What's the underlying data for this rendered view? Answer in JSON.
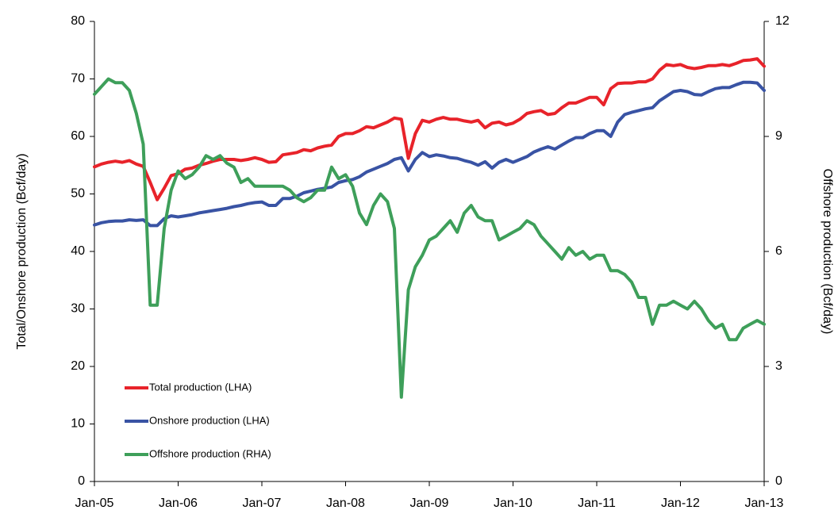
{
  "chart_data": {
    "type": "line",
    "y_label": "Total/Onshore production (Bcf/day)",
    "y2_label": "Offshore production (Bcf/day)",
    "categories": [
      "Jan-05",
      null,
      null,
      null,
      null,
      null,
      null,
      null,
      null,
      null,
      null,
      null,
      "Jan-06",
      null,
      null,
      null,
      null,
      null,
      null,
      null,
      null,
      null,
      null,
      null,
      "Jan-07",
      null,
      null,
      null,
      null,
      null,
      null,
      null,
      null,
      null,
      null,
      null,
      "Jan-08",
      null,
      null,
      null,
      null,
      null,
      null,
      null,
      null,
      null,
      null,
      null,
      "Jan-09",
      null,
      null,
      null,
      null,
      null,
      null,
      null,
      null,
      null,
      null,
      null,
      "Jan-10",
      null,
      null,
      null,
      null,
      null,
      null,
      null,
      null,
      null,
      null,
      null,
      "Jan-11",
      null,
      null,
      null,
      null,
      null,
      null,
      null,
      null,
      null,
      null,
      null,
      "Jan-12",
      null,
      null,
      null,
      null,
      null,
      null,
      null,
      null,
      null,
      null,
      null,
      "Jan-13"
    ],
    "series": [
      {
        "name": "Total production (LHA)",
        "color": "#e8232a",
        "values": [
          54.7,
          55.2,
          55.5,
          55.7,
          55.5,
          55.8,
          55.2,
          54.8,
          52,
          49,
          51,
          53.2,
          53.5,
          54.3,
          54.5,
          55,
          55.3,
          55.7,
          56,
          56,
          56,
          55.8,
          56,
          56.3,
          56,
          55.5,
          55.6,
          56.8,
          57,
          57.2,
          57.7,
          57.5,
          58,
          58.3,
          58.5,
          60,
          60.5,
          60.5,
          61,
          61.7,
          61.5,
          62,
          62.5,
          63.2,
          63,
          56.2,
          60.5,
          62.8,
          62.5,
          63,
          63.3,
          63,
          63,
          62.7,
          62.5,
          62.8,
          61.5,
          62.3,
          62.5,
          62,
          62.3,
          63,
          64,
          64.3,
          64.5,
          63.8,
          64,
          65,
          65.8,
          65.8,
          66.3,
          66.8,
          66.8,
          65.5,
          68.3,
          69.2,
          69.3,
          69.3,
          69.5,
          69.5,
          70,
          71.5,
          72.5,
          72.3,
          72.5,
          72,
          71.8,
          72,
          72.3,
          72.3,
          72.5,
          72.3,
          72.7,
          73.2,
          73.3,
          73.5,
          72.2
        ]
      },
      {
        "name": "Onshore production (LHA)",
        "color": "#3953a4",
        "values": [
          44.6,
          45,
          45.2,
          45.3,
          45.3,
          45.5,
          45.4,
          45.5,
          44.5,
          44.5,
          45.7,
          46.2,
          46,
          46.2,
          46.4,
          46.7,
          46.9,
          47.1,
          47.3,
          47.5,
          47.8,
          48,
          48.3,
          48.5,
          48.6,
          48,
          48,
          49.2,
          49.2,
          49.6,
          50.2,
          50.5,
          50.8,
          51,
          51.2,
          52,
          52.3,
          52.5,
          53,
          53.8,
          54.3,
          54.8,
          55.3,
          56,
          56.3,
          54,
          56,
          57.2,
          56.5,
          56.8,
          56.6,
          56.3,
          56.2,
          55.8,
          55.5,
          55,
          55.6,
          54.5,
          55.5,
          56,
          55.5,
          56,
          56.5,
          57.3,
          57.8,
          58.2,
          57.8,
          58.5,
          59.2,
          59.8,
          59.8,
          60.5,
          61,
          61,
          60,
          62.5,
          63.8,
          64.2,
          64.5,
          64.8,
          65,
          66.2,
          67,
          67.8,
          68,
          67.8,
          67.3,
          67.2,
          67.8,
          68.3,
          68.5,
          68.5,
          69,
          69.4,
          69.4,
          69.3,
          68
        ]
      },
      {
        "name": "Offshore production (RHA)",
        "color": "#3e9f5a",
        "axis": "y2",
        "values": [
          10.1,
          10.3,
          10.5,
          10.4,
          10.4,
          10.2,
          9.6,
          8.8,
          4.6,
          4.6,
          6.6,
          7.6,
          8.1,
          7.9,
          8.0,
          8.2,
          8.5,
          8.4,
          8.5,
          8.3,
          8.2,
          7.8,
          7.9,
          7.7,
          7.7,
          7.7,
          7.7,
          7.7,
          7.6,
          7.4,
          7.3,
          7.4,
          7.6,
          7.6,
          8.2,
          7.9,
          8.0,
          7.7,
          7.0,
          6.7,
          7.2,
          7.5,
          7.3,
          6.6,
          2.2,
          5.0,
          5.6,
          5.9,
          6.3,
          6.4,
          6.6,
          6.8,
          6.5,
          7.0,
          7.2,
          6.9,
          6.8,
          6.8,
          6.3,
          6.4,
          6.5,
          6.6,
          6.8,
          6.7,
          6.4,
          6.2,
          6.0,
          5.8,
          6.1,
          5.9,
          6.0,
          5.8,
          5.9,
          5.9,
          5.5,
          5.5,
          5.4,
          5.2,
          4.8,
          4.8,
          4.1,
          4.6,
          4.6,
          4.7,
          4.6,
          4.5,
          4.7,
          4.5,
          4.2,
          4.0,
          4.1,
          3.7,
          3.7,
          4.0,
          4.1,
          4.2,
          4.1
        ]
      }
    ],
    "ylim": [
      0,
      80
    ],
    "yticks": [
      0,
      10,
      20,
      30,
      40,
      50,
      60,
      70,
      80
    ],
    "y2lim": [
      0,
      12
    ],
    "y2ticks": [
      0,
      3,
      6,
      9,
      12
    ],
    "grid": false,
    "legend": "lower left"
  }
}
